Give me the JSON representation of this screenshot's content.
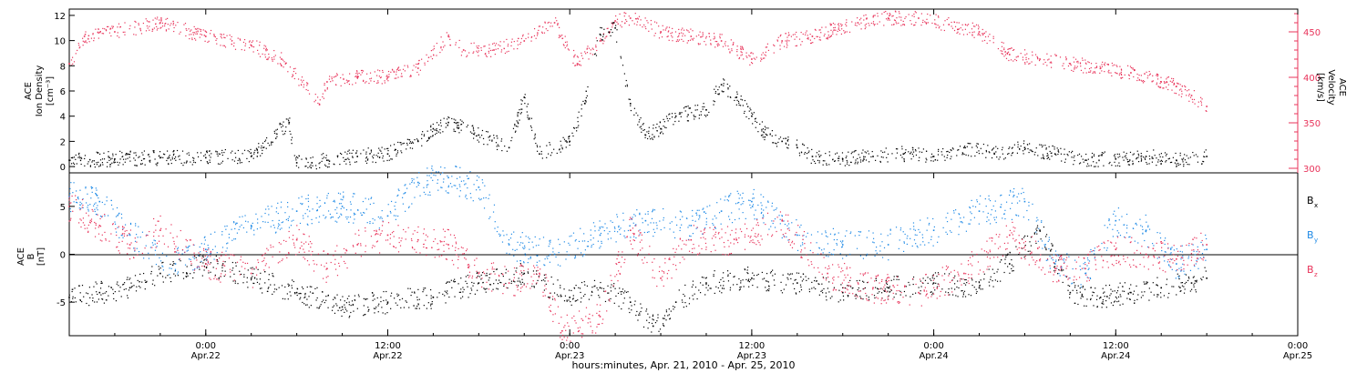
{
  "colors": {
    "black": "#000000",
    "red": "#e8335a",
    "blue": "#1f8ae6"
  },
  "xaxis": {
    "label": "hours:minutes, Apr. 21, 2010 - Apr. 25, 2010",
    "range": [
      "2010-04-21T15:00",
      "2010-04-25T00:00"
    ],
    "ticks": [
      {
        "time": "2010-04-22T00:00",
        "l1": "0:00",
        "l2": "Apr.22"
      },
      {
        "time": "2010-04-22T12:00",
        "l1": "12:00",
        "l2": "Apr.22"
      },
      {
        "time": "2010-04-23T00:00",
        "l1": "0:00",
        "l2": "Apr.23"
      },
      {
        "time": "2010-04-23T12:00",
        "l1": "12:00",
        "l2": "Apr.23"
      },
      {
        "time": "2010-04-24T00:00",
        "l1": "0:00",
        "l2": "Apr.24"
      },
      {
        "time": "2010-04-24T12:00",
        "l1": "12:00",
        "l2": "Apr.24"
      },
      {
        "time": "2010-04-25T00:00",
        "l1": "0:00",
        "l2": "Apr.25"
      }
    ]
  },
  "top_panel": {
    "left_label_1": "ACE",
    "left_label_2": "Ion Density",
    "left_label_3": "[cm⁻³]",
    "right_label_1": "ACE",
    "right_label_2": "Velocity",
    "right_label_3": "[km/s]",
    "left_ticks": [
      "0",
      "2",
      "4",
      "6",
      "8",
      "10",
      "12"
    ],
    "right_ticks": [
      "300",
      "350",
      "400",
      "450"
    ]
  },
  "bottom_panel": {
    "left_label_1": "ACE",
    "left_label_2": "B",
    "left_label_3": "[nT]",
    "left_ticks": [
      "-5",
      "0",
      "5"
    ],
    "legend": [
      {
        "label": "B",
        "sub": "x",
        "color": "#000000"
      },
      {
        "label": "B",
        "sub": "y",
        "color": "#1f8ae6"
      },
      {
        "label": "B",
        "sub": "z",
        "color": "#e8335a"
      }
    ]
  },
  "chart_data": [
    {
      "type": "scatter",
      "title": "",
      "xlabel": "hours:minutes, Apr. 21, 2010 - Apr. 25, 2010",
      "ylabel": "ACE Ion Density [cm-3]",
      "y2label": "ACE Velocity [km/s]",
      "ylim": [
        -0.5,
        12.5
      ],
      "y2lim": [
        295,
        475
      ],
      "series": [
        {
          "name": "ACE Ion Density",
          "axis": "left",
          "color": "#000000",
          "x": [
            "2010-04-21T15:00",
            "2010-04-21T18:00",
            "2010-04-21T21:00",
            "2010-04-22T00:00",
            "2010-04-22T03:00",
            "2010-04-22T05:30",
            "2010-04-22T06:00",
            "2010-04-22T07:00",
            "2010-04-22T08:00",
            "2010-04-22T10:00",
            "2010-04-22T12:00",
            "2010-04-22T14:00",
            "2010-04-22T15:00",
            "2010-04-22T16:00",
            "2010-04-22T18:00",
            "2010-04-22T20:00",
            "2010-04-22T21:00",
            "2010-04-22T22:00",
            "2010-04-23T00:00",
            "2010-04-23T01:00",
            "2010-04-23T02:00",
            "2010-04-23T03:00",
            "2010-04-23T04:00",
            "2010-04-23T05:00",
            "2010-04-23T06:00",
            "2010-04-23T07:00",
            "2010-04-23T09:00",
            "2010-04-23T10:00",
            "2010-04-23T11:00",
            "2010-04-23T12:00",
            "2010-04-23T13:00",
            "2010-04-23T14:00",
            "2010-04-23T15:00",
            "2010-04-23T16:00",
            "2010-04-23T18:00",
            "2010-04-23T20:00",
            "2010-04-23T22:00",
            "2010-04-24T00:00",
            "2010-04-24T02:00",
            "2010-04-24T04:00",
            "2010-04-24T06:00",
            "2010-04-24T08:00",
            "2010-04-24T10:00",
            "2010-04-24T12:00",
            "2010-04-24T14:00",
            "2010-04-24T16:00",
            "2010-04-24T18:00"
          ],
          "values": [
            0.5,
            0.6,
            0.7,
            0.7,
            0.8,
            3.5,
            0.3,
            0.3,
            0.5,
            0.8,
            1.0,
            2.0,
            3.0,
            3.5,
            2.5,
            1.5,
            5.5,
            1.0,
            2.0,
            5.0,
            10.5,
            11.0,
            5.0,
            2.5,
            3.0,
            4.0,
            4.5,
            6.5,
            5.5,
            4.0,
            2.5,
            2.0,
            1.5,
            0.8,
            0.6,
            0.8,
            1.0,
            0.8,
            1.5,
            1.0,
            1.5,
            1.0,
            0.5,
            0.6,
            0.8,
            0.5,
            0.8
          ]
        },
        {
          "name": "ACE Velocity",
          "axis": "right",
          "color": "#e8335a",
          "x": [
            "2010-04-21T15:00",
            "2010-04-21T16:00",
            "2010-04-21T18:00",
            "2010-04-21T21:00",
            "2010-04-22T00:00",
            "2010-04-22T03:00",
            "2010-04-22T05:00",
            "2010-04-22T07:30",
            "2010-04-22T08:00",
            "2010-04-22T10:00",
            "2010-04-22T12:00",
            "2010-04-22T14:00",
            "2010-04-22T16:00",
            "2010-04-22T17:00",
            "2010-04-22T19:00",
            "2010-04-22T21:00",
            "2010-04-22T23:00",
            "2010-04-23T00:30",
            "2010-04-23T02:00",
            "2010-04-23T03:00",
            "2010-04-23T04:00",
            "2010-04-23T06:00",
            "2010-04-23T08:00",
            "2010-04-23T10:00",
            "2010-04-23T12:00",
            "2010-04-23T14:00",
            "2010-04-23T16:00",
            "2010-04-23T19:00",
            "2010-04-23T21:00",
            "2010-04-23T23:00",
            "2010-04-24T01:00",
            "2010-04-24T03:00",
            "2010-04-24T05:00",
            "2010-04-24T07:00",
            "2010-04-24T09:00",
            "2010-04-24T11:00",
            "2010-04-24T13:00",
            "2010-04-24T15:00",
            "2010-04-24T16:00",
            "2010-04-24T17:00",
            "2010-04-24T18:00"
          ],
          "values": [
            415,
            445,
            450,
            460,
            445,
            435,
            420,
            370,
            395,
            400,
            400,
            410,
            445,
            430,
            430,
            440,
            460,
            415,
            440,
            462,
            465,
            450,
            445,
            440,
            420,
            440,
            445,
            460,
            465,
            465,
            458,
            450,
            425,
            420,
            415,
            410,
            405,
            395,
            390,
            380,
            368
          ]
        }
      ]
    },
    {
      "type": "scatter",
      "title": "",
      "xlabel": "hours:minutes, Apr. 21, 2010 - Apr. 25, 2010",
      "ylabel": "ACE B [nT]",
      "ylim": [
        -8.5,
        8.5
      ],
      "series": [
        {
          "name": "Bx",
          "color": "#000000",
          "x": [
            "2010-04-21T15:00",
            "2010-04-21T17:00",
            "2010-04-21T19:00",
            "2010-04-21T21:00",
            "2010-04-22T00:00",
            "2010-04-22T03:00",
            "2010-04-22T06:00",
            "2010-04-22T09:00",
            "2010-04-22T12:00",
            "2010-04-22T15:00",
            "2010-04-22T18:00",
            "2010-04-22T21:00",
            "2010-04-23T00:00",
            "2010-04-23T02:00",
            "2010-04-23T04:00",
            "2010-04-23T05:30",
            "2010-04-23T07:00",
            "2010-04-23T09:00",
            "2010-04-23T12:00",
            "2010-04-23T15:00",
            "2010-04-23T18:00",
            "2010-04-23T21:00",
            "2010-04-24T00:00",
            "2010-04-24T03:00",
            "2010-04-24T05:00",
            "2010-04-24T07:00",
            "2010-04-24T09:00",
            "2010-04-24T11:00",
            "2010-04-24T13:00",
            "2010-04-24T15:00",
            "2010-04-24T17:00",
            "2010-04-24T18:00"
          ],
          "values": [
            -4.5,
            -4.0,
            -3.5,
            -2.0,
            -1.0,
            -2.5,
            -4.0,
            -5.5,
            -5.0,
            -4.5,
            -3.0,
            -2.0,
            -4.5,
            -3.5,
            -5.0,
            -7.5,
            -5.0,
            -3.0,
            -2.5,
            -3.0,
            -4.0,
            -3.5,
            -3.0,
            -3.5,
            -1.0,
            2.5,
            -4.0,
            -4.5,
            -4.0,
            -3.5,
            -3.0,
            -2.5
          ]
        },
        {
          "name": "By",
          "color": "#1f8ae6",
          "x": [
            "2010-04-21T15:00",
            "2010-04-21T17:00",
            "2010-04-21T19:00",
            "2010-04-21T22:00",
            "2010-04-22T00:00",
            "2010-04-22T03:00",
            "2010-04-22T06:00",
            "2010-04-22T09:00",
            "2010-04-22T12:00",
            "2010-04-22T14:00",
            "2010-04-22T16:00",
            "2010-04-22T18:00",
            "2010-04-22T20:00",
            "2010-04-22T23:00",
            "2010-04-23T02:00",
            "2010-04-23T05:00",
            "2010-04-23T08:00",
            "2010-04-23T10:00",
            "2010-04-23T12:00",
            "2010-04-23T15:00",
            "2010-04-23T18:00",
            "2010-04-23T21:00",
            "2010-04-24T00:00",
            "2010-04-24T03:00",
            "2010-04-24T06:00",
            "2010-04-24T08:00",
            "2010-04-24T10:00",
            "2010-04-24T12:00",
            "2010-04-24T14:00",
            "2010-04-24T16:00",
            "2010-04-24T18:00"
          ],
          "values": [
            6.0,
            5.5,
            2.0,
            -1.0,
            0.5,
            3.0,
            4.5,
            5.0,
            4.0,
            7.5,
            8.0,
            7.0,
            1.0,
            0.0,
            2.0,
            3.5,
            3.0,
            4.5,
            5.5,
            2.0,
            1.0,
            1.0,
            2.5,
            4.5,
            5.5,
            -1.0,
            -2.0,
            3.5,
            2.5,
            -1.0,
            0.5
          ]
        },
        {
          "name": "Bz",
          "color": "#e8335a",
          "x": [
            "2010-04-21T15:00",
            "2010-04-21T17:00",
            "2010-04-21T19:00",
            "2010-04-21T21:00",
            "2010-04-22T00:00",
            "2010-04-22T03:00",
            "2010-04-22T06:00",
            "2010-04-22T08:00",
            "2010-04-22T10:00",
            "2010-04-22T12:00",
            "2010-04-22T14:00",
            "2010-04-22T16:00",
            "2010-04-22T18:00",
            "2010-04-22T20:00",
            "2010-04-22T22:00",
            "2010-04-22T23:30",
            "2010-04-23T02:00",
            "2010-04-23T04:00",
            "2010-04-23T06:00",
            "2010-04-23T08:00",
            "2010-04-23T11:00",
            "2010-04-23T14:00",
            "2010-04-23T17:00",
            "2010-04-23T20:00",
            "2010-04-23T23:00",
            "2010-04-24T02:00",
            "2010-04-24T05:00",
            "2010-04-24T08:00",
            "2010-04-24T10:00",
            "2010-04-24T12:00",
            "2010-04-24T14:00",
            "2010-04-24T16:00",
            "2010-04-24T18:00"
          ],
          "values": [
            5.0,
            3.0,
            1.0,
            2.5,
            -1.0,
            -2.0,
            1.5,
            -1.5,
            1.0,
            2.0,
            1.5,
            1.0,
            -2.0,
            -3.0,
            -2.0,
            -8.0,
            -6.5,
            2.5,
            -2.5,
            1.5,
            1.5,
            3.5,
            -2.0,
            -3.5,
            -4.0,
            -2.0,
            2.0,
            -1.5,
            -1.5,
            0.5,
            0.0,
            -0.5,
            1.0
          ]
        }
      ]
    }
  ]
}
